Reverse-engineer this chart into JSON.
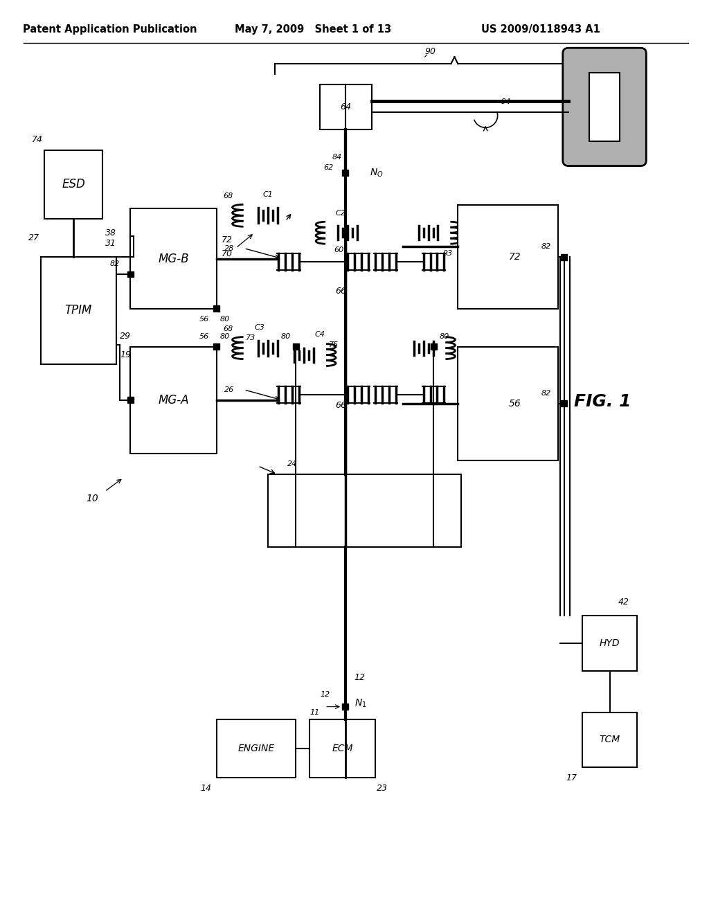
{
  "header_left": "Patent Application Publication",
  "header_center": "May 7, 2009   Sheet 1 of 13",
  "header_right": "US 2009/0118943 A1",
  "bg_color": "#ffffff"
}
